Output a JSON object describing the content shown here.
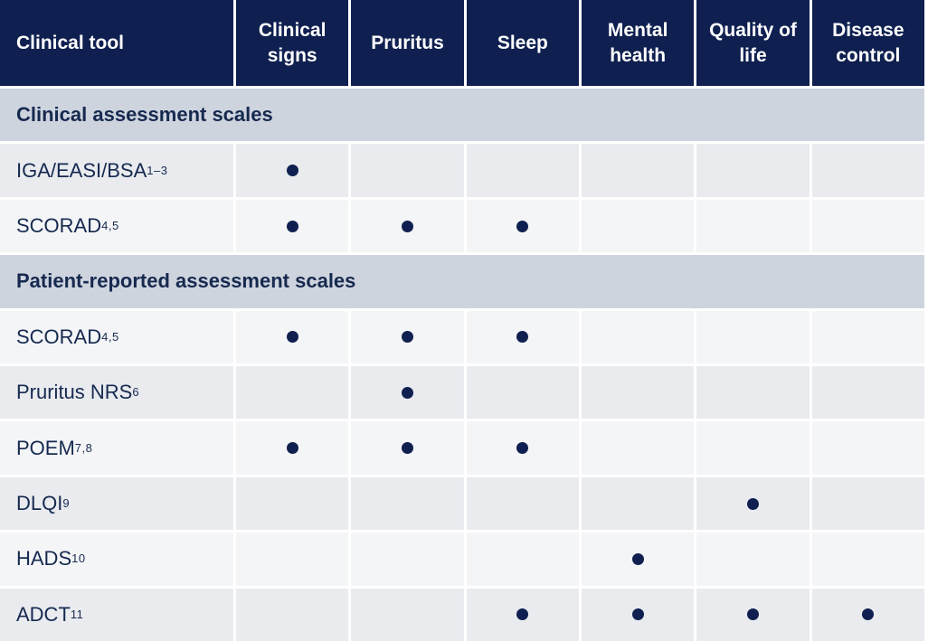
{
  "colors": {
    "header_bg": "#0f2050",
    "section_bg": "#ced4de",
    "row_dark": "#e9ebef",
    "row_light": "#f4f5f7",
    "dot": "#0f2050",
    "text_navy": "#16294f"
  },
  "table": {
    "columns": [
      {
        "label": "Clinical tool"
      },
      {
        "label": "Clinical signs"
      },
      {
        "label": "Pruritus"
      },
      {
        "label": "Sleep"
      },
      {
        "label": "Mental health"
      },
      {
        "label": "Quality of life"
      },
      {
        "label": "Disease control"
      }
    ],
    "sections": [
      {
        "title": "Clinical assessment scales",
        "rows": [
          {
            "tool": "IGA/EASI/BSA",
            "sup": "1–3",
            "shade": "dark",
            "marks": [
              true,
              false,
              false,
              false,
              false,
              false
            ]
          },
          {
            "tool": "SCORAD",
            "sup": "4,5",
            "shade": "light",
            "marks": [
              true,
              true,
              true,
              false,
              false,
              false
            ]
          }
        ]
      },
      {
        "title": "Patient-reported assessment scales",
        "rows": [
          {
            "tool": "SCORAD",
            "sup": "4,5",
            "shade": "light",
            "marks": [
              true,
              true,
              true,
              false,
              false,
              false
            ]
          },
          {
            "tool": "Pruritus NRS",
            "sup": "6",
            "shade": "dark",
            "marks": [
              false,
              true,
              false,
              false,
              false,
              false
            ]
          },
          {
            "tool": "POEM",
            "sup": "7,8",
            "shade": "light",
            "marks": [
              true,
              true,
              true,
              false,
              false,
              false
            ]
          },
          {
            "tool": "DLQI",
            "sup": "9",
            "shade": "dark",
            "marks": [
              false,
              false,
              false,
              false,
              true,
              false
            ]
          },
          {
            "tool": "HADS",
            "sup": "10",
            "shade": "light",
            "marks": [
              false,
              false,
              false,
              true,
              false,
              false
            ]
          },
          {
            "tool": "ADCT",
            "sup": "11",
            "shade": "dark",
            "marks": [
              false,
              false,
              true,
              true,
              true,
              true
            ]
          }
        ]
      }
    ]
  }
}
